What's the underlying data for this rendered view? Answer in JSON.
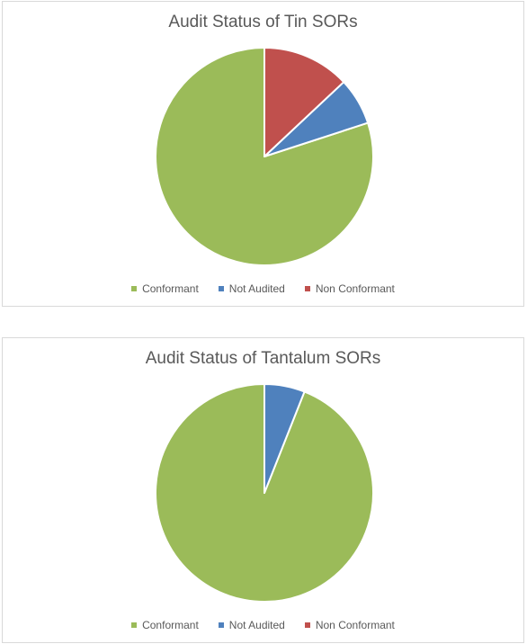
{
  "chart_data": [
    {
      "type": "pie",
      "title": "Audit Status of Tin SORs",
      "categories": [
        "Conformant",
        "Not Audited",
        "Non Conformant"
      ],
      "values": [
        80,
        7,
        13
      ],
      "colors": [
        "#9bbb59",
        "#4f81bd",
        "#c0504d"
      ],
      "legend_position": "bottom"
    },
    {
      "type": "pie",
      "title": "Audit Status of Tantalum SORs",
      "categories": [
        "Conformant",
        "Not Audited",
        "Non Conformant"
      ],
      "values": [
        94,
        6,
        0
      ],
      "colors": [
        "#9bbb59",
        "#4f81bd",
        "#c0504d"
      ],
      "legend_position": "bottom"
    }
  ]
}
